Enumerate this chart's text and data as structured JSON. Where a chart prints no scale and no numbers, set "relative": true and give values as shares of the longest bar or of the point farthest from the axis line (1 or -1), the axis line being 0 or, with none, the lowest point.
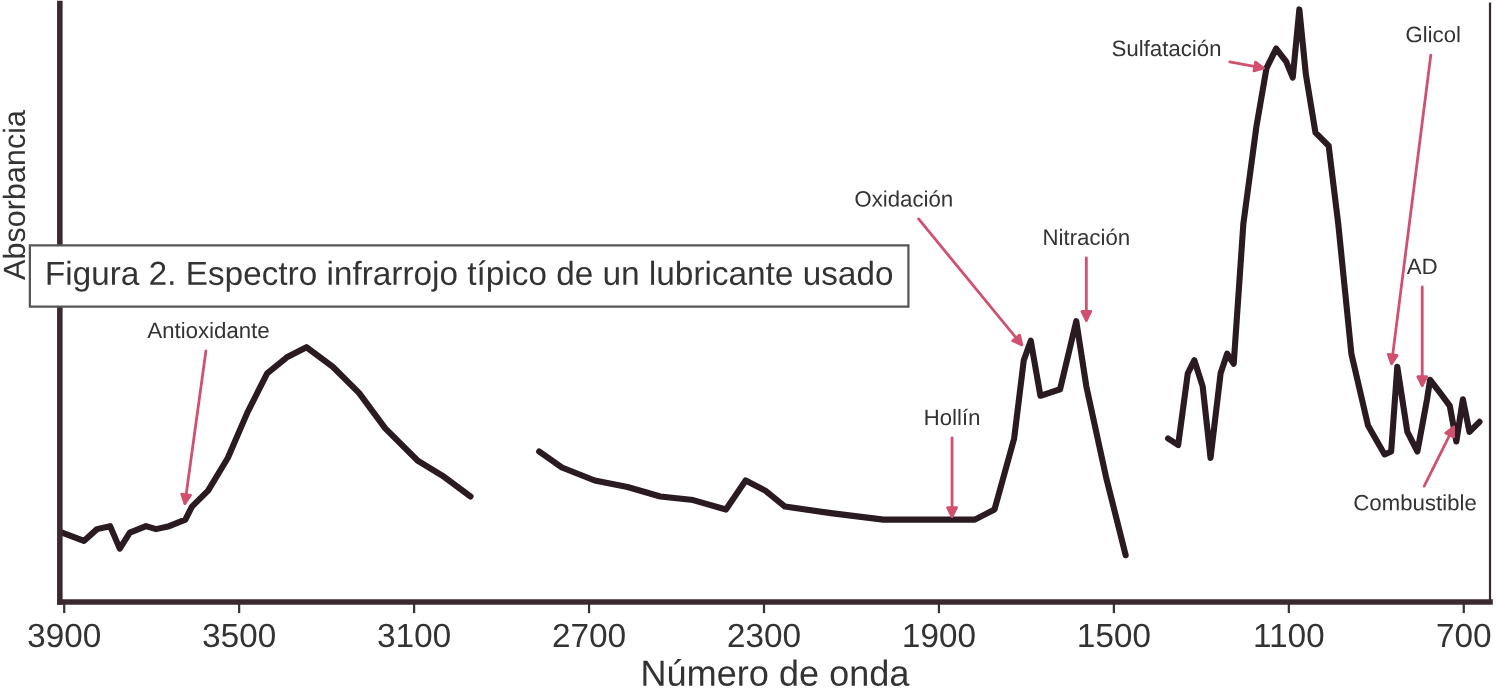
{
  "chart_data": {
    "type": "line",
    "title": "Figura 2. Espectro infrarrojo típico de un lubricante usado",
    "xlabel": "Número de onda",
    "ylabel": "Absorbancia",
    "relative": true,
    "xlim": [
      3910,
      640
    ],
    "xticks": [
      3900,
      3500,
      3100,
      2700,
      2300,
      1900,
      1500,
      1100,
      700
    ],
    "grid": false,
    "marker": "none",
    "line_style": "solid",
    "series": [
      {
        "color": "#2a1a22",
        "x": [
          3905,
          3855,
          3825,
          3795,
          3773,
          3750,
          3713,
          3690,
          3660,
          3623,
          3608,
          3571,
          3526,
          3481,
          3436,
          3391,
          3346,
          3286,
          3226,
          3166,
          3091,
          3031,
          2971,
          2890,
          2814,
          2762,
          2687,
          2612,
          2537,
          2462,
          2387,
          2342,
          2297,
          2252,
          2147,
          2027,
          1893,
          1818,
          1773,
          1728,
          1706,
          1690,
          1668,
          1623,
          1586,
          1563,
          1518,
          1473,
          1420,
          1376,
          1353,
          1331,
          1316,
          1297,
          1279,
          1256,
          1241,
          1226,
          1204,
          1174,
          1151,
          1129,
          1106,
          1091,
          1076,
          1061,
          1039,
          1009,
          987,
          957,
          919,
          881,
          866,
          852,
          829,
          806,
          784,
          777,
          754,
          732,
          717,
          702,
          687,
          664
        ],
        "values": [
          0.117,
          0.103,
          0.123,
          0.128,
          0.09,
          0.117,
          0.128,
          0.123,
          0.128,
          0.139,
          0.161,
          0.188,
          0.243,
          0.32,
          0.386,
          0.413,
          0.43,
          0.397,
          0.353,
          0.293,
          0.238,
          0.211,
          0.178,
          null,
          0.254,
          0.227,
          0.205,
          0.194,
          0.178,
          0.172,
          0.156,
          0.205,
          0.188,
          0.161,
          0.15,
          0.139,
          0.139,
          0.139,
          0.156,
          0.276,
          0.408,
          0.441,
          0.348,
          0.359,
          0.474,
          0.364,
          0.211,
          0.079,
          null,
          0.276,
          0.265,
          0.386,
          0.408,
          0.364,
          0.243,
          0.386,
          0.419,
          0.402,
          0.638,
          0.803,
          0.901,
          0.934,
          0.912,
          0.885,
          1.0,
          0.89,
          0.792,
          0.77,
          0.638,
          0.419,
          0.298,
          0.249,
          0.254,
          0.397,
          0.287,
          0.254,
          0.342,
          0.375,
          0.353,
          0.331,
          0.271,
          0.342,
          0.287,
          0.304
        ]
      }
    ],
    "annotations": [
      {
        "text": "Antioxidante",
        "x": 3625,
        "y": 0.161
      },
      {
        "text": "Oxidación",
        "x": 1706,
        "y": 0.43
      },
      {
        "text": "Nitración",
        "x": 1563,
        "y": 0.47
      },
      {
        "text": "Hollín",
        "x": 1870,
        "y": 0.139
      },
      {
        "text": "Sulfatación",
        "x": 1151,
        "y": 0.9
      },
      {
        "text": "Glicol",
        "x": 866,
        "y": 0.397
      },
      {
        "text": "AD",
        "x": 795,
        "y": 0.36
      },
      {
        "text": "Combustible",
        "x": 720,
        "y": 0.3
      }
    ]
  }
}
